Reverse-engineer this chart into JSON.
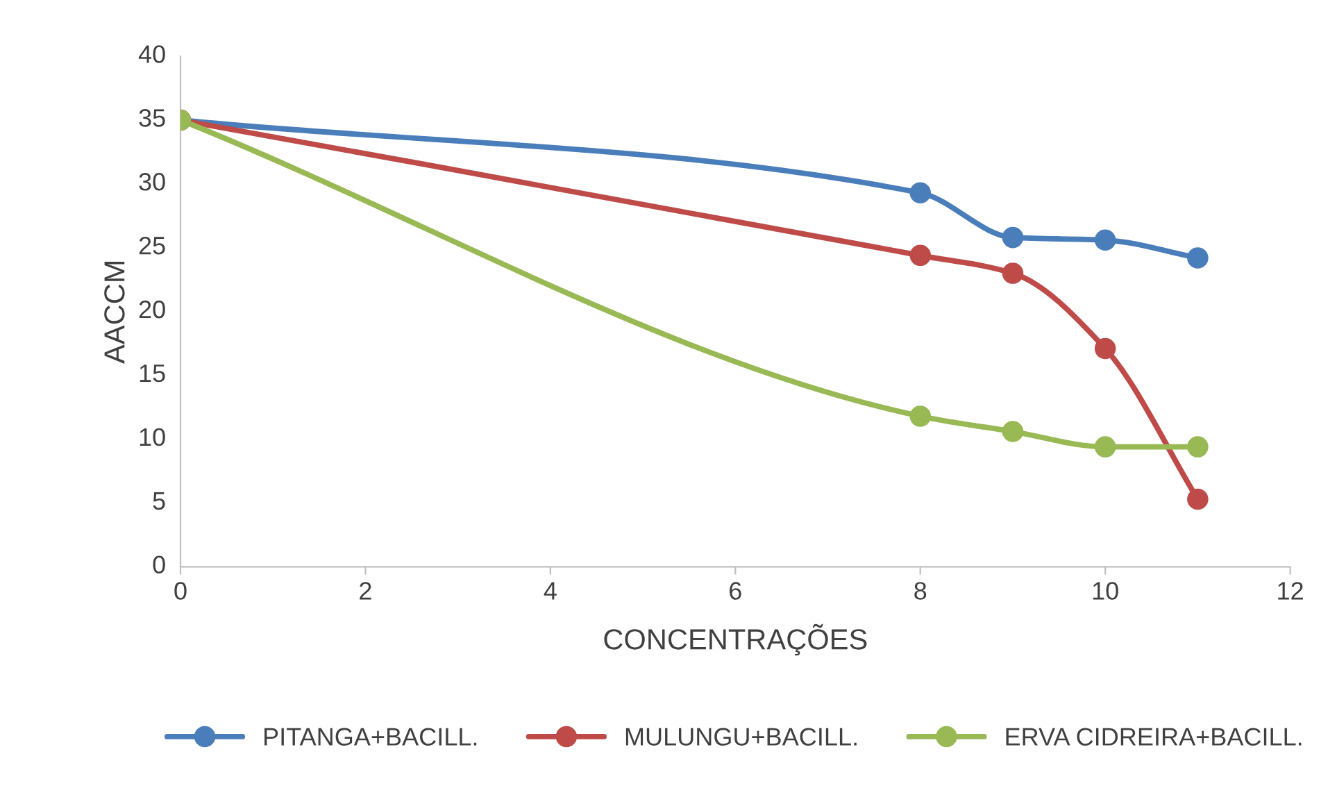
{
  "chart_data": {
    "type": "line",
    "xlabel": "CONCENTRAÇÕES",
    "ylabel": "AACCM",
    "xlim": [
      0,
      12
    ],
    "xticks": [
      0,
      2,
      4,
      6,
      8,
      10,
      12
    ],
    "ylim": [
      0,
      40
    ],
    "yticks": [
      0,
      5,
      10,
      15,
      20,
      25,
      30,
      35,
      40
    ],
    "grid": false,
    "legend": "bottom",
    "marker": "circle",
    "line_style": "solid",
    "series": [
      {
        "name": "PITANGA+BACILL.",
        "color": "#4a7ebb",
        "x": [
          0,
          8,
          9,
          10,
          11
        ],
        "values": [
          35,
          29.3,
          25.8,
          25.6,
          24.2
        ]
      },
      {
        "name": "MULUNGU+BACILL.",
        "color": "#be4b48",
        "x": [
          0,
          8,
          9,
          10,
          11
        ],
        "values": [
          35,
          24.4,
          23.0,
          17.1,
          5.3
        ]
      },
      {
        "name": "ERVA CIDREIRA+BACILL.",
        "color": "#98b954",
        "x": [
          0,
          8,
          9,
          10,
          11
        ],
        "values": [
          35,
          11.8,
          10.6,
          9.4,
          9.4
        ]
      }
    ]
  }
}
